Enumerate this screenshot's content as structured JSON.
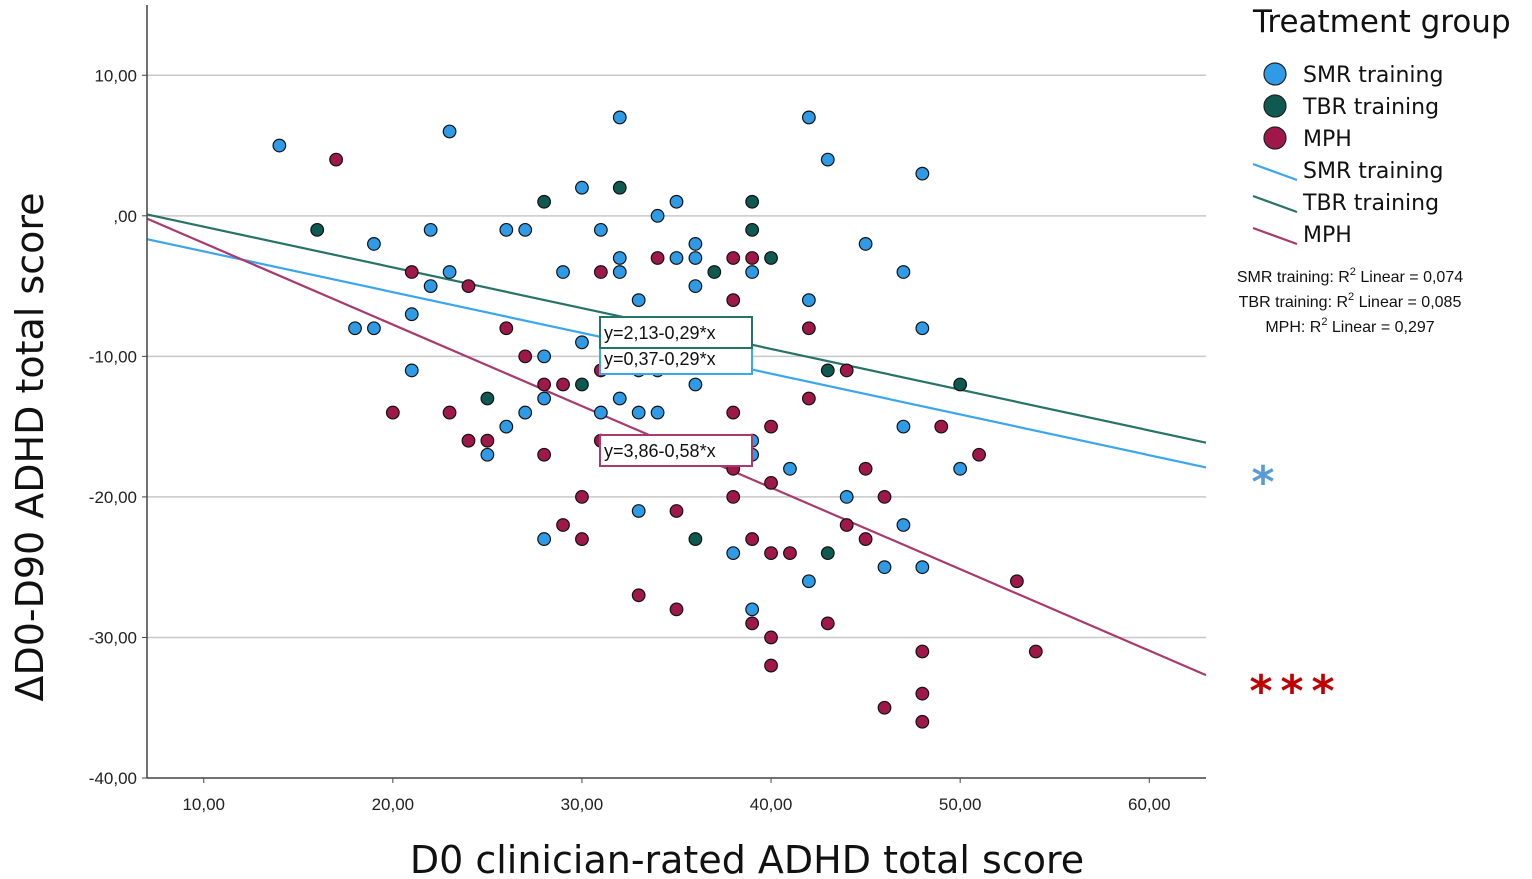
{
  "colors": {
    "smr": "#2F9BE6",
    "tbr": "#0E5A50",
    "mph": "#A0184A",
    "smr_line": "#3AA6EE",
    "tbr_line": "#27736A",
    "mph_line": "#A83A6E",
    "star_smr": "#5B9BD5",
    "star_mph": "#C00000"
  },
  "chart_data": {
    "type": "scatter",
    "xlabel": "D0 clinician-rated ADHD total score",
    "ylabel": "ΔD0-D90 ADHD total score",
    "xlim": [
      7,
      63
    ],
    "ylim": [
      -40,
      15
    ],
    "x_ticks": [
      10,
      20,
      30,
      40,
      50,
      60
    ],
    "x_tick_labels": [
      "10,00",
      "20,00",
      "30,00",
      "40,00",
      "50,00",
      "60,00"
    ],
    "y_ticks": [
      10,
      0,
      -10,
      -20,
      -30,
      -40
    ],
    "y_tick_labels": [
      "10,00",
      ",00",
      "-10,00",
      "-20,00",
      "-30,00",
      "-40,00"
    ],
    "grid": true,
    "legend": {
      "title": "Treatment group",
      "position": "top-right",
      "marker_entries": [
        "SMR training",
        "TBR training",
        "MPH"
      ],
      "line_entries": [
        "SMR training",
        "TBR training",
        "MPH"
      ]
    },
    "r2_labels": [
      {
        "prefix": "SMR training: R",
        "sup": "2",
        "suffix": " Linear = 0,074"
      },
      {
        "prefix": "TBR training: R",
        "sup": "2",
        "suffix": " Linear = 0,085"
      },
      {
        "prefix": "MPH: R",
        "sup": "2",
        "suffix": " Linear = 0,297"
      }
    ],
    "series": [
      {
        "name": "SMR training",
        "key": "smr",
        "intercept": 0.37,
        "slope": -0.29,
        "equation": "y=0,37-0,29*x",
        "significance": "*",
        "points": [
          [
            14,
            5
          ],
          [
            23,
            6
          ],
          [
            32,
            7
          ],
          [
            42,
            7
          ],
          [
            43,
            4
          ],
          [
            48,
            3
          ],
          [
            30,
            2
          ],
          [
            35,
            1
          ],
          [
            34,
            0
          ],
          [
            19,
            -2
          ],
          [
            22,
            -1
          ],
          [
            26,
            -1
          ],
          [
            27,
            -1
          ],
          [
            31,
            -1
          ],
          [
            36,
            -2
          ],
          [
            36,
            -3
          ],
          [
            32,
            -3
          ],
          [
            35,
            -3
          ],
          [
            45,
            -2
          ],
          [
            29,
            -4
          ],
          [
            32,
            -4
          ],
          [
            39,
            -4
          ],
          [
            47,
            -4
          ],
          [
            23,
            -4
          ],
          [
            22,
            -5
          ],
          [
            36,
            -5
          ],
          [
            33,
            -6
          ],
          [
            42,
            -6
          ],
          [
            21,
            -7
          ],
          [
            18,
            -8
          ],
          [
            19,
            -8
          ],
          [
            48,
            -8
          ],
          [
            30,
            -9
          ],
          [
            28,
            -10
          ],
          [
            21,
            -11
          ],
          [
            33,
            -11
          ],
          [
            34,
            -11
          ],
          [
            36,
            -12
          ],
          [
            28,
            -13
          ],
          [
            32,
            -13
          ],
          [
            27,
            -14
          ],
          [
            31,
            -14
          ],
          [
            33,
            -14
          ],
          [
            34,
            -14
          ],
          [
            26,
            -15
          ],
          [
            47,
            -15
          ],
          [
            39,
            -16
          ],
          [
            25,
            -17
          ],
          [
            39,
            -17
          ],
          [
            41,
            -18
          ],
          [
            50,
            -18
          ],
          [
            44,
            -20
          ],
          [
            33,
            -21
          ],
          [
            47,
            -22
          ],
          [
            28,
            -23
          ],
          [
            38,
            -24
          ],
          [
            42,
            -26
          ],
          [
            46,
            -25
          ],
          [
            48,
            -25
          ],
          [
            39,
            -28
          ]
        ]
      },
      {
        "name": "TBR training",
        "key": "tbr",
        "intercept": 2.13,
        "slope": -0.29,
        "equation": "y=2,13-0,29*x",
        "significance": "",
        "points": [
          [
            28,
            1
          ],
          [
            32,
            2
          ],
          [
            39,
            1
          ],
          [
            16,
            -1
          ],
          [
            39,
            -1
          ],
          [
            40,
            -3
          ],
          [
            37,
            -4
          ],
          [
            43,
            -11
          ],
          [
            50,
            -12
          ],
          [
            30,
            -12
          ],
          [
            25,
            -13
          ],
          [
            36,
            -23
          ],
          [
            43,
            -24
          ]
        ]
      },
      {
        "name": "MPH",
        "key": "mph",
        "intercept": 3.86,
        "slope": -0.58,
        "equation": "y=3,86-0,58*x",
        "significance": "***",
        "points": [
          [
            17,
            4
          ],
          [
            21,
            -4
          ],
          [
            24,
            -5
          ],
          [
            31,
            -4
          ],
          [
            34,
            -3
          ],
          [
            38,
            -3
          ],
          [
            39,
            -3
          ],
          [
            38,
            -6
          ],
          [
            26,
            -8
          ],
          [
            42,
            -8
          ],
          [
            27,
            -10
          ],
          [
            28,
            -12
          ],
          [
            29,
            -12
          ],
          [
            31,
            -11
          ],
          [
            44,
            -11
          ],
          [
            42,
            -13
          ],
          [
            20,
            -14
          ],
          [
            23,
            -14
          ],
          [
            38,
            -14
          ],
          [
            40,
            -15
          ],
          [
            24,
            -16
          ],
          [
            25,
            -16
          ],
          [
            31,
            -16
          ],
          [
            49,
            -15
          ],
          [
            51,
            -17
          ],
          [
            28,
            -17
          ],
          [
            38,
            -18
          ],
          [
            45,
            -18
          ],
          [
            40,
            -19
          ],
          [
            30,
            -20
          ],
          [
            38,
            -20
          ],
          [
            46,
            -20
          ],
          [
            35,
            -21
          ],
          [
            29,
            -22
          ],
          [
            30,
            -23
          ],
          [
            44,
            -22
          ],
          [
            45,
            -23
          ],
          [
            39,
            -23
          ],
          [
            40,
            -24
          ],
          [
            41,
            -24
          ],
          [
            53,
            -26
          ],
          [
            33,
            -27
          ],
          [
            35,
            -28
          ],
          [
            39,
            -29
          ],
          [
            43,
            -29
          ],
          [
            40,
            -30
          ],
          [
            48,
            -31
          ],
          [
            54,
            -31
          ],
          [
            40,
            -32
          ],
          [
            48,
            -34
          ],
          [
            46,
            -35
          ],
          [
            48,
            -36
          ]
        ]
      }
    ]
  }
}
